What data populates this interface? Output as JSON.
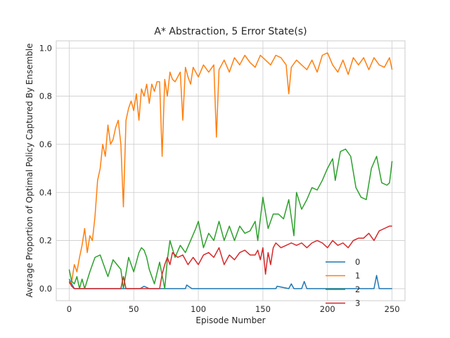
{
  "chart_data": {
    "type": "line",
    "title": "A* Abstraction, 5 Error State(s)",
    "xlabel": "Episode Number",
    "ylabel": "Average Proportion of Optimal Policy Captured By Ensemble",
    "xlim": [
      -10,
      260
    ],
    "ylim": [
      -0.05,
      1.03
    ],
    "xticks": [
      0,
      50,
      100,
      150,
      200,
      250
    ],
    "yticks": [
      0.0,
      0.2,
      0.4,
      0.6,
      0.8,
      1.0
    ],
    "grid": true,
    "legend_position": "lower-right",
    "series": [
      {
        "name": "0",
        "color": "#1f77b4",
        "x": [
          0,
          2,
          4,
          6,
          10,
          20,
          30,
          32,
          40,
          45,
          50,
          55,
          58,
          62,
          64,
          70,
          80,
          90,
          91,
          95,
          100,
          120,
          140,
          150,
          160,
          161,
          170,
          172,
          174,
          180,
          182,
          184,
          190,
          200,
          210,
          220,
          230,
          236,
          238,
          240,
          242,
          250
        ],
        "y": [
          0.04,
          0.02,
          0.0,
          0.0,
          0.0,
          0.0,
          0.0,
          0.0,
          0.0,
          0.0,
          0.0,
          0.0,
          0.01,
          0.0,
          0.0,
          0.0,
          0.0,
          0.0,
          0.015,
          0.0,
          0.0,
          0.0,
          0.0,
          0.0,
          0.0,
          0.01,
          0.0,
          0.02,
          0.0,
          0.0,
          0.03,
          0.0,
          0.0,
          0.0,
          0.0,
          0.0,
          0.0,
          0.0,
          0.055,
          0.0,
          0.0,
          0.0
        ]
      },
      {
        "name": "1",
        "color": "#ff7f0e",
        "x": [
          0,
          2,
          4,
          6,
          8,
          10,
          12,
          14,
          16,
          18,
          20,
          22,
          24,
          26,
          28,
          30,
          32,
          34,
          36,
          38,
          40,
          42,
          44,
          46,
          48,
          50,
          52,
          54,
          56,
          58,
          60,
          62,
          64,
          66,
          68,
          70,
          72,
          74,
          76,
          78,
          80,
          82,
          84,
          86,
          88,
          90,
          92,
          94,
          96,
          98,
          100,
          104,
          108,
          112,
          114,
          116,
          120,
          124,
          128,
          132,
          136,
          140,
          144,
          148,
          152,
          156,
          160,
          164,
          168,
          170,
          172,
          176,
          180,
          184,
          188,
          192,
          196,
          200,
          204,
          208,
          212,
          216,
          220,
          224,
          228,
          232,
          236,
          240,
          244,
          248,
          250
        ],
        "y": [
          0.02,
          0.03,
          0.1,
          0.07,
          0.13,
          0.18,
          0.25,
          0.15,
          0.22,
          0.2,
          0.3,
          0.45,
          0.5,
          0.6,
          0.55,
          0.68,
          0.6,
          0.62,
          0.67,
          0.7,
          0.6,
          0.34,
          0.7,
          0.75,
          0.78,
          0.74,
          0.81,
          0.7,
          0.83,
          0.8,
          0.85,
          0.77,
          0.85,
          0.82,
          0.86,
          0.86,
          0.55,
          0.87,
          0.8,
          0.9,
          0.87,
          0.86,
          0.88,
          0.9,
          0.7,
          0.92,
          0.88,
          0.85,
          0.92,
          0.9,
          0.88,
          0.93,
          0.9,
          0.93,
          0.63,
          0.91,
          0.95,
          0.9,
          0.96,
          0.93,
          0.97,
          0.94,
          0.92,
          0.97,
          0.95,
          0.93,
          0.97,
          0.96,
          0.93,
          0.81,
          0.92,
          0.95,
          0.93,
          0.91,
          0.95,
          0.9,
          0.97,
          0.98,
          0.93,
          0.9,
          0.95,
          0.89,
          0.96,
          0.93,
          0.96,
          0.91,
          0.96,
          0.93,
          0.92,
          0.96,
          0.91
        ]
      },
      {
        "name": "2",
        "color": "#2ca02c",
        "x": [
          0,
          2,
          4,
          6,
          8,
          10,
          12,
          16,
          20,
          24,
          28,
          30,
          34,
          40,
          42,
          46,
          50,
          54,
          56,
          58,
          60,
          62,
          66,
          70,
          74,
          76,
          78,
          82,
          86,
          90,
          94,
          98,
          100,
          104,
          108,
          112,
          116,
          120,
          124,
          128,
          132,
          136,
          140,
          144,
          146,
          150,
          154,
          158,
          162,
          166,
          170,
          174,
          176,
          180,
          184,
          188,
          192,
          196,
          200,
          204,
          206,
          210,
          214,
          218,
          222,
          226,
          230,
          234,
          238,
          242,
          246,
          248,
          250
        ],
        "y": [
          0.08,
          0.03,
          0.02,
          0.05,
          0.0,
          0.04,
          0.0,
          0.07,
          0.13,
          0.14,
          0.08,
          0.05,
          0.12,
          0.08,
          0.0,
          0.13,
          0.07,
          0.15,
          0.17,
          0.16,
          0.13,
          0.08,
          0.02,
          0.11,
          0.0,
          0.12,
          0.2,
          0.13,
          0.18,
          0.15,
          0.2,
          0.25,
          0.28,
          0.17,
          0.23,
          0.2,
          0.28,
          0.2,
          0.26,
          0.2,
          0.26,
          0.23,
          0.24,
          0.28,
          0.2,
          0.38,
          0.25,
          0.31,
          0.31,
          0.29,
          0.37,
          0.22,
          0.4,
          0.33,
          0.37,
          0.42,
          0.41,
          0.45,
          0.5,
          0.54,
          0.45,
          0.57,
          0.58,
          0.55,
          0.42,
          0.38,
          0.37,
          0.5,
          0.55,
          0.44,
          0.43,
          0.44,
          0.53
        ]
      },
      {
        "name": "3",
        "color": "#d62728",
        "x": [
          0,
          2,
          4,
          6,
          8,
          10,
          20,
          30,
          40,
          42,
          44,
          46,
          50,
          60,
          70,
          72,
          74,
          76,
          78,
          80,
          84,
          88,
          92,
          96,
          100,
          104,
          108,
          112,
          116,
          120,
          124,
          128,
          132,
          136,
          140,
          144,
          146,
          148,
          150,
          152,
          154,
          156,
          158,
          160,
          164,
          168,
          172,
          176,
          180,
          184,
          188,
          192,
          196,
          200,
          204,
          208,
          212,
          216,
          220,
          224,
          228,
          232,
          236,
          240,
          244,
          248,
          250
        ],
        "y": [
          0.03,
          0.01,
          0.0,
          0.0,
          0.0,
          0.0,
          0.0,
          0.0,
          0.0,
          0.05,
          0.0,
          0.0,
          0.0,
          0.0,
          0.0,
          0.06,
          0.1,
          0.13,
          0.1,
          0.15,
          0.13,
          0.14,
          0.1,
          0.13,
          0.1,
          0.14,
          0.15,
          0.13,
          0.17,
          0.1,
          0.14,
          0.12,
          0.15,
          0.16,
          0.14,
          0.14,
          0.16,
          0.12,
          0.17,
          0.06,
          0.15,
          0.1,
          0.17,
          0.19,
          0.17,
          0.18,
          0.19,
          0.18,
          0.19,
          0.17,
          0.19,
          0.2,
          0.19,
          0.17,
          0.2,
          0.18,
          0.19,
          0.17,
          0.2,
          0.21,
          0.21,
          0.23,
          0.2,
          0.24,
          0.25,
          0.26,
          0.26
        ]
      }
    ]
  }
}
